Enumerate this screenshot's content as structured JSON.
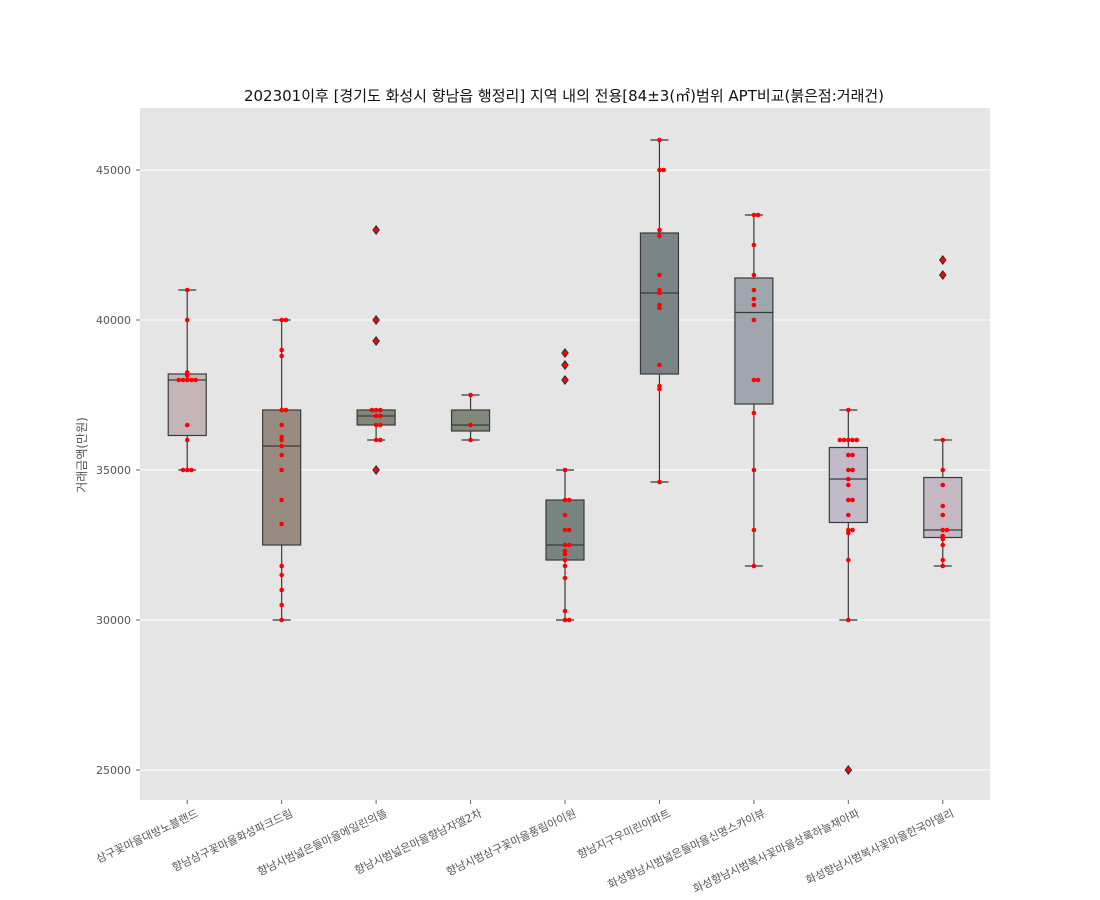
{
  "chart_data": {
    "type": "box",
    "title": "202301이후 [경기도 화성시 향남읍 행정리] 지역 내의 전용[84±3(㎡)범위 APT비교(붉은점:거래건)",
    "xlabel": "",
    "ylabel": "거래금액(만원)",
    "ylim": [
      24000,
      47000
    ],
    "yticks": [
      25000,
      30000,
      35000,
      40000,
      45000
    ],
    "grid": true,
    "colors": {
      "background": "#e5e5e5",
      "grid": "#ffffff",
      "points": "#ff0000",
      "outlier": "#3a3a3a",
      "line": "#3a3a3a"
    },
    "categories": [
      "삼구꽃마을대방노블랜드",
      "향남삼구꽃마을화성파크드림",
      "향남시범넓은들마을에일린의뜰",
      "향남시범넓은마을향남자엘2차",
      "향남시범삼구꽃마을풍림아이원",
      "향남지구우미린아파트",
      "화성향남시범넓은들마을신명스카이뷰",
      "화성향남시범복사꽃마을상록하늘채아파",
      "화성향남시범복사꽃마을한국아델리"
    ],
    "boxes": [
      {
        "color": "#c4b6b8",
        "q1": 36150,
        "median": 38000,
        "q3": 38200,
        "whisker_low": 35000,
        "whisker_high": 41000,
        "outliers": [],
        "points": [
          35000,
          35000,
          35000,
          36000,
          36500,
          38000,
          38000,
          38000,
          38000,
          38000,
          38150,
          38250,
          40000,
          41000
        ]
      },
      {
        "color": "#988c82",
        "q1": 32500,
        "median": 35800,
        "q3": 37000,
        "whisker_low": 30000,
        "whisker_high": 40000,
        "outliers": [],
        "points": [
          30000,
          30500,
          31000,
          31500,
          31800,
          33200,
          34000,
          35000,
          35500,
          35800,
          36000,
          36100,
          36500,
          37000,
          37000,
          38800,
          39000,
          40000,
          40000
        ]
      },
      {
        "color": "#878577",
        "q1": 36500,
        "median": 36800,
        "q3": 37000,
        "whisker_low": 36000,
        "whisker_high": 37000,
        "outliers": [
          35000,
          39300,
          40000,
          43000
        ],
        "points": [
          35000,
          36000,
          36000,
          36500,
          36500,
          36800,
          36800,
          37000,
          37000,
          37000,
          39300,
          40000,
          43000
        ]
      },
      {
        "color": "#7f887a",
        "q1": 36300,
        "median": 36500,
        "q3": 37000,
        "whisker_low": 36000,
        "whisker_high": 37500,
        "outliers": [],
        "points": [
          36000,
          36500,
          37500
        ]
      },
      {
        "color": "#768580",
        "q1": 32000,
        "median": 32500,
        "q3": 34000,
        "whisker_low": 30000,
        "whisker_high": 35000,
        "outliers": [
          38000,
          38500,
          38900
        ],
        "points": [
          30000,
          30000,
          30300,
          31400,
          31800,
          32000,
          32200,
          32300,
          32500,
          32500,
          33000,
          33000,
          33500,
          34000,
          34000,
          35000,
          38000,
          38500,
          38900
        ]
      },
      {
        "color": "#7a8587",
        "q1": 38200,
        "median": 40900,
        "q3": 42900,
        "whisker_low": 34600,
        "whisker_high": 46000,
        "outliers": [],
        "points": [
          34600,
          37700,
          37800,
          38500,
          40400,
          40500,
          40900,
          41000,
          41500,
          42800,
          43000,
          45000,
          45000,
          46000
        ]
      },
      {
        "color": "#9fa6ad",
        "q1": 37200,
        "median": 40250,
        "q3": 41400,
        "whisker_low": 31800,
        "whisker_high": 43500,
        "outliers": [],
        "points": [
          31800,
          33000,
          35000,
          36900,
          38000,
          38000,
          40000,
          40500,
          40700,
          41000,
          41500,
          42500,
          43500,
          43500
        ]
      },
      {
        "color": "#c1bac8",
        "q1": 33250,
        "median": 34700,
        "q3": 35750,
        "whisker_low": 30000,
        "whisker_high": 37000,
        "outliers": [
          25000
        ],
        "points": [
          25000,
          30000,
          32000,
          32900,
          33000,
          33000,
          33500,
          34000,
          34000,
          34500,
          34700,
          35000,
          35000,
          35500,
          35500,
          36000,
          36000,
          36000,
          36000,
          36000,
          37000
        ]
      },
      {
        "color": "#c3b8c4",
        "q1": 32750,
        "median": 33000,
        "q3": 34750,
        "whisker_low": 31800,
        "whisker_high": 36000,
        "outliers": [
          41500,
          42000
        ],
        "points": [
          31800,
          32000,
          32500,
          32700,
          32800,
          33000,
          33000,
          33500,
          33800,
          34500,
          35000,
          36000,
          41500,
          42000
        ]
      }
    ]
  }
}
